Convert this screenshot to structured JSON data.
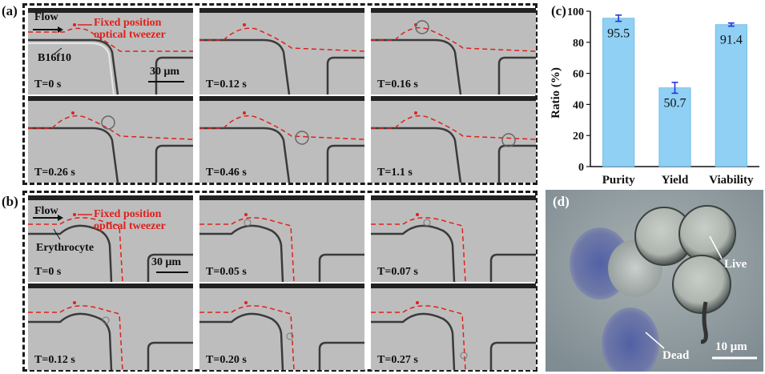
{
  "figure": {
    "panels": {
      "a": "(a)",
      "b": "(b)",
      "c": "(c)",
      "d": "(d)"
    }
  },
  "panel_a": {
    "flow_label": "Flow",
    "tweezer_label_line1": "Fixed position",
    "tweezer_label_line2": "optical tweezer",
    "cell_label": "B16f10",
    "scale_label": "30 μm",
    "frames": [
      "T=0 s",
      "T=0.12 s",
      "T=0.16 s",
      "T=0.26 s",
      "T=0.46 s",
      "T=1.1 s"
    ]
  },
  "panel_b": {
    "flow_label": "Flow",
    "tweezer_label_line1": "Fixed position",
    "tweezer_label_line2": "optical tweezer",
    "cell_label": "Erythrocyte",
    "scale_label": "30 μm",
    "frames": [
      "T=0 s",
      "T=0.05 s",
      "T=0.07 s",
      "T=0.12 s",
      "T=0.20 s",
      "T=0.27 s"
    ]
  },
  "panel_d": {
    "live_label": "Live",
    "dead_label": "Dead",
    "scale_label": "10 μm"
  },
  "chart_data": {
    "type": "bar",
    "categories": [
      "Purity",
      "Yield",
      "Viability"
    ],
    "values": [
      95.5,
      50.7,
      91.4
    ],
    "errors": [
      2.0,
      3.5,
      1.0
    ],
    "data_labels": [
      "95.5",
      "50.7",
      "91.4"
    ],
    "ylabel": "Ratio (%)",
    "ylim": [
      0,
      100
    ],
    "yticks": [
      0,
      20,
      40,
      60,
      80,
      100
    ],
    "bar_color": "#8fd0f4",
    "error_color": "#1c2bd9"
  }
}
